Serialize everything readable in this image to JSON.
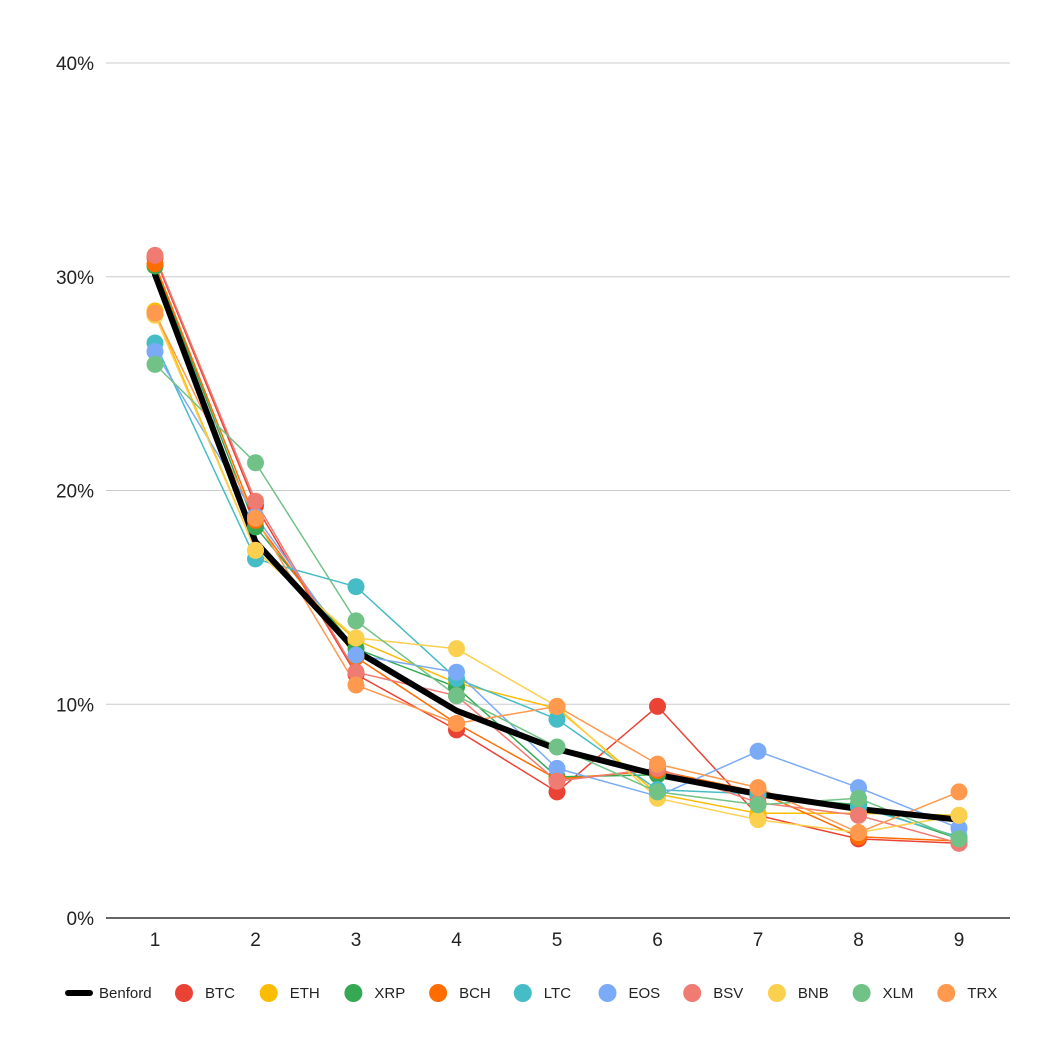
{
  "chart_data": {
    "type": "line",
    "title": "",
    "xlabel": "",
    "ylabel": "",
    "x": [
      1,
      2,
      3,
      4,
      5,
      6,
      7,
      8,
      9
    ],
    "ylim": [
      0,
      40
    ],
    "yticks": [
      "0%",
      "10%",
      "20%",
      "30%",
      "40%"
    ],
    "grid": true,
    "legend_position": "bottom",
    "series": [
      {
        "name": "Benford",
        "color": "#000000",
        "markers": false,
        "values": [
          30.1,
          17.6,
          12.5,
          9.7,
          7.9,
          6.7,
          5.8,
          5.1,
          4.6
        ]
      },
      {
        "name": "BTC",
        "color": "#ea4335",
        "markers": true,
        "values": [
          30.9,
          19.3,
          11.4,
          8.8,
          5.9,
          9.9,
          4.8,
          3.7,
          3.5
        ]
      },
      {
        "name": "ETH",
        "color": "#fbbc04",
        "markers": true,
        "values": [
          28.4,
          17.2,
          13.0,
          11.0,
          9.8,
          5.8,
          4.9,
          4.9,
          4.8
        ]
      },
      {
        "name": "XRP",
        "color": "#34a853",
        "markers": true,
        "values": [
          30.5,
          18.3,
          12.6,
          10.8,
          6.6,
          6.7,
          5.7,
          5.3,
          3.7
        ]
      },
      {
        "name": "BCH",
        "color": "#ff6d01",
        "markers": true,
        "values": [
          30.6,
          18.6,
          12.2,
          9.1,
          6.5,
          6.9,
          5.9,
          3.8,
          3.6
        ]
      },
      {
        "name": "LTC",
        "color": "#46bdc6",
        "markers": true,
        "values": [
          26.9,
          16.8,
          15.5,
          11.2,
          9.3,
          6.0,
          5.8,
          5.2,
          3.8
        ]
      },
      {
        "name": "EOS",
        "color": "#7baaf7",
        "markers": true,
        "values": [
          26.5,
          18.8,
          12.3,
          11.5,
          7.0,
          5.7,
          7.8,
          6.1,
          4.2
        ]
      },
      {
        "name": "BSV",
        "color": "#f07b72",
        "markers": true,
        "values": [
          31.0,
          19.5,
          11.5,
          10.4,
          6.4,
          7.0,
          5.4,
          4.8,
          3.5
        ]
      },
      {
        "name": "BNB",
        "color": "#fcd04f",
        "markers": true,
        "values": [
          28.2,
          17.2,
          13.1,
          12.6,
          9.9,
          5.6,
          4.6,
          4.0,
          4.8
        ]
      },
      {
        "name": "XLM",
        "color": "#71c287",
        "markers": true,
        "values": [
          25.9,
          21.3,
          13.9,
          10.4,
          8.0,
          5.9,
          5.3,
          5.6,
          3.7
        ]
      },
      {
        "name": "TRX",
        "color": "#ff994d",
        "markers": true,
        "values": [
          28.3,
          18.7,
          10.9,
          9.1,
          9.9,
          7.2,
          6.1,
          4.0,
          5.9
        ]
      }
    ]
  }
}
